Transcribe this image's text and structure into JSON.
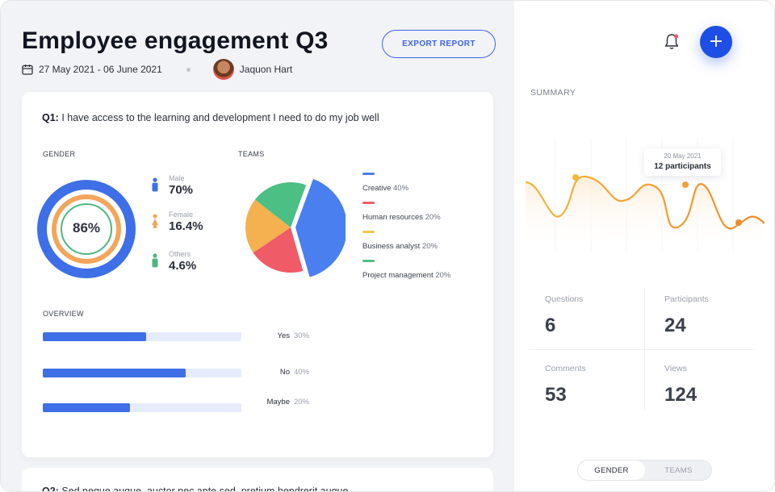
{
  "header": {
    "title": "Employee engagement Q3",
    "date_range": "27 May 2021 - 06 June 2021",
    "user_name": "Jaquon Hart",
    "export_label": "EXPORT REPORT"
  },
  "question1": {
    "number": "Q1:",
    "text": " I have access to the learning and development I need to do my job well"
  },
  "question2": {
    "number": "Q2:",
    "text": " Sed neque augue, auctor nec ante sed, pretium hendrerit augue."
  },
  "gender": {
    "label": "GENDER",
    "center_value": "86%",
    "items": [
      {
        "label": "Male",
        "value": "70%",
        "color": "#3e6fe6"
      },
      {
        "label": "Female",
        "value": "16.4%",
        "color": "#f2a65a"
      },
      {
        "label": "Others",
        "value": "4.6%",
        "color": "#4cb782"
      }
    ]
  },
  "teams": {
    "label": "TEAMS",
    "items": [
      {
        "name": "Creative",
        "pct": "40%",
        "value": 40,
        "color": "#4a7ff0"
      },
      {
        "name": "Human resources",
        "pct": "20%",
        "value": 20,
        "color": "#ef5b67"
      },
      {
        "name": "Business analyst",
        "pct": "20%",
        "value": 20,
        "color": "#f5b04f"
      },
      {
        "name": "Project management",
        "pct": "20%",
        "value": 20,
        "color": "#4cbf84"
      }
    ]
  },
  "overview": {
    "label": "OVERVIEW",
    "items": [
      {
        "label": "Yes",
        "pct": "30%",
        "fill": 0.52
      },
      {
        "label": "No",
        "pct": "40%",
        "fill": 0.72
      },
      {
        "label": "Maybe",
        "pct": "20%",
        "fill": 0.44
      }
    ]
  },
  "sidebar": {
    "summary_label": "SUMMARY",
    "tooltip": {
      "date": "20 May 2021",
      "value": "12 participants"
    },
    "stats": [
      {
        "label": "Questions",
        "value": "6"
      },
      {
        "label": "Participants",
        "value": "24"
      },
      {
        "label": "Comments",
        "value": "53"
      },
      {
        "label": "Views",
        "value": "124"
      }
    ],
    "toggle": {
      "active": "GENDER",
      "inactive": "TEAMS"
    },
    "add_label": "+"
  },
  "colors": {
    "accent": "#1d4ee6",
    "line_start": "#f5b73b",
    "line_end": "#f28a2a"
  }
}
